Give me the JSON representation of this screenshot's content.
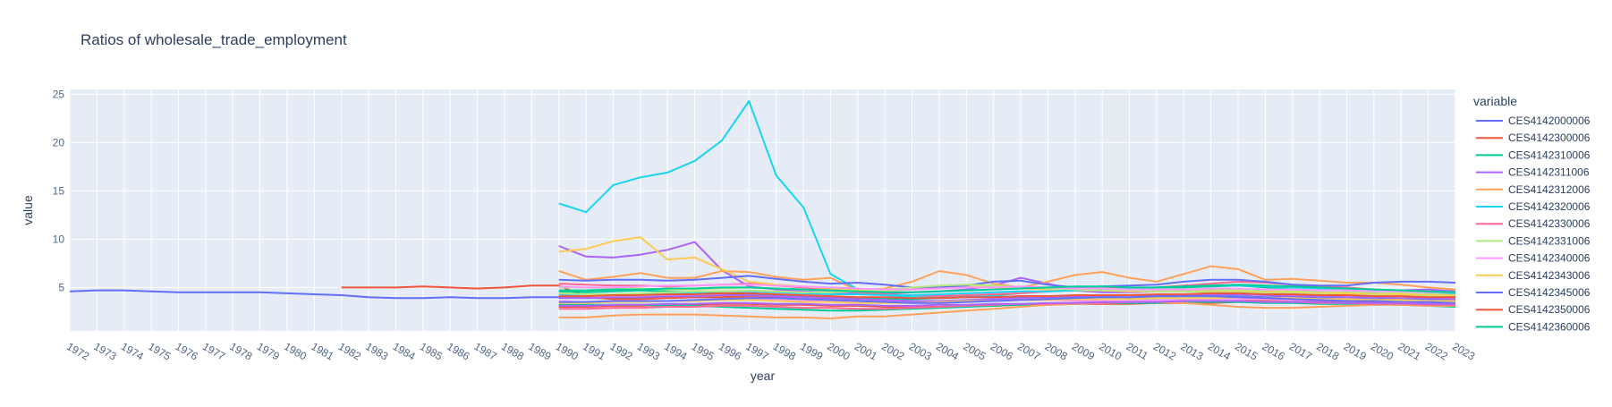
{
  "chart_data": {
    "type": "line",
    "title": "Ratios of wholesale_trade_employment",
    "xlabel": "year",
    "ylabel": "value",
    "xlim": [
      1972,
      2023
    ],
    "ylim": [
      0.5,
      25.5
    ],
    "y_ticks": [
      5,
      10,
      15,
      20,
      25
    ],
    "x_ticks": [
      1972,
      1973,
      1974,
      1975,
      1976,
      1977,
      1978,
      1979,
      1980,
      1981,
      1982,
      1983,
      1984,
      1985,
      1986,
      1987,
      1988,
      1989,
      1990,
      1991,
      1992,
      1993,
      1994,
      1995,
      1996,
      1997,
      1998,
      1999,
      2000,
      2001,
      2002,
      2003,
      2004,
      2005,
      2006,
      2007,
      2008,
      2009,
      2010,
      2011,
      2012,
      2013,
      2014,
      2015,
      2016,
      2017,
      2018,
      2019,
      2020,
      2021,
      2022,
      2023
    ],
    "grid": true,
    "legend": {
      "title": "variable",
      "placement": "right"
    },
    "series": [
      {
        "name": "CES4142000006",
        "color": "#636efa",
        "start": 1972,
        "values": [
          4.6,
          4.7,
          4.7,
          4.6,
          4.5,
          4.5,
          4.5,
          4.5,
          4.4,
          4.3,
          4.2,
          4.0,
          3.9,
          3.9,
          4.0,
          3.9,
          3.9,
          4.0,
          4.0,
          3.9,
          3.9,
          3.9,
          4.0,
          4.0,
          4.0,
          4.1,
          4.1,
          4.1,
          4.0,
          3.9,
          3.8,
          3.9,
          3.9,
          4.0,
          4.0,
          4.1,
          4.1,
          4.0,
          3.9,
          3.9,
          4.0,
          4.1,
          4.1,
          4.1,
          4.0,
          4.0,
          3.9,
          3.9,
          3.8,
          3.8,
          3.8,
          3.7
        ]
      },
      {
        "name": "CES4142300006",
        "color": "#ef553b",
        "start": 1982,
        "values": [
          5.0,
          5.0,
          5.0,
          5.1,
          5.0,
          4.9,
          5.0,
          5.2,
          5.2,
          4.0,
          3.8,
          3.8,
          3.9,
          4.0,
          4.0,
          4.1,
          4.0,
          4.0,
          3.9,
          3.8,
          3.7,
          3.6,
          3.5,
          3.6,
          3.6,
          3.7,
          3.7,
          3.8,
          3.6,
          3.6,
          3.7,
          3.8,
          3.8,
          3.7,
          3.7,
          3.7,
          3.6,
          3.6,
          3.5,
          3.5,
          3.5,
          3.4
        ]
      },
      {
        "name": "CES4142310006",
        "color": "#00cc96",
        "start": 1990,
        "values": [
          4.6,
          4.5,
          4.6,
          4.7,
          4.6,
          4.5,
          4.4,
          4.3,
          4.2,
          4.0,
          3.9,
          3.9,
          3.8,
          3.8,
          3.9,
          4.0,
          4.2,
          4.4,
          4.6,
          4.7,
          4.8,
          4.9,
          5.0,
          5.0,
          5.1,
          5.2,
          5.0,
          4.8,
          4.6,
          4.5,
          4.4,
          4.3,
          4.2,
          4.1
        ]
      },
      {
        "name": "CES4142311006",
        "color": "#ab63fa",
        "start": 1990,
        "values": [
          9.3,
          8.2,
          8.1,
          8.4,
          8.9,
          9.7,
          6.8,
          5.1,
          4.8,
          4.6,
          4.5,
          4.4,
          4.4,
          4.5,
          4.6,
          4.8,
          5.2,
          6.0,
          5.4,
          4.7,
          4.5,
          4.5,
          4.6,
          4.6,
          4.6,
          4.7,
          4.6,
          4.5,
          4.5,
          4.5,
          4.6,
          4.7,
          4.8,
          4.6
        ]
      },
      {
        "name": "CES4142312006",
        "color": "#ffa15a",
        "start": 1990,
        "values": [
          6.7,
          5.8,
          6.1,
          6.5,
          6.0,
          6.0,
          6.7,
          6.6,
          6.1,
          5.8,
          6.0,
          4.7,
          4.9,
          5.6,
          6.7,
          6.3,
          5.4,
          5.0,
          5.6,
          6.3,
          6.6,
          6.0,
          5.6,
          6.4,
          7.2,
          6.9,
          5.8,
          5.9,
          5.7,
          5.5,
          5.5,
          5.3,
          5.0,
          4.8
        ]
      },
      {
        "name": "CES4142320006",
        "color": "#19d3f3",
        "start": 1990,
        "values": [
          13.7,
          12.8,
          15.6,
          16.4,
          16.9,
          18.1,
          20.2,
          24.3,
          16.6,
          13.3,
          6.4,
          4.8,
          4.2,
          4.0,
          4.0,
          4.1,
          4.1,
          4.0,
          3.9,
          3.9,
          3.9,
          3.8,
          3.8,
          3.9,
          3.9,
          3.9,
          3.8,
          3.8,
          3.7,
          3.7,
          3.6,
          3.6,
          3.6,
          3.5
        ]
      },
      {
        "name": "CES4142330006",
        "color": "#ff6692",
        "start": 1990,
        "values": [
          5.4,
          5.3,
          5.2,
          5.2,
          5.1,
          5.2,
          5.3,
          5.4,
          5.2,
          5.0,
          4.8,
          4.5,
          4.3,
          4.2,
          4.1,
          4.2,
          4.3,
          4.4,
          4.6,
          4.8,
          4.9,
          4.9,
          5.0,
          5.2,
          5.4,
          5.6,
          5.5,
          5.3,
          5.1,
          5.0,
          4.8,
          4.6,
          4.5,
          4.4
        ]
      },
      {
        "name": "CES4142331006",
        "color": "#b6e880",
        "start": 1990,
        "values": [
          5.0,
          5.0,
          4.9,
          4.9,
          4.8,
          4.8,
          4.9,
          5.0,
          4.9,
          4.8,
          4.7,
          4.6,
          4.6,
          4.8,
          5.1,
          5.3,
          5.2,
          5.0,
          4.9,
          4.8,
          4.8,
          4.7,
          4.7,
          4.8,
          4.8,
          4.7,
          4.7,
          4.6,
          4.6,
          4.5,
          4.5,
          4.4,
          4.3,
          4.3
        ]
      },
      {
        "name": "CES4142340006",
        "color": "#ff97ff",
        "start": 1990,
        "values": [
          3.6,
          3.5,
          3.5,
          3.6,
          3.6,
          3.7,
          3.7,
          3.8,
          3.7,
          3.6,
          3.6,
          3.5,
          3.5,
          3.5,
          3.6,
          3.7,
          3.7,
          3.8,
          3.7,
          3.6,
          3.6,
          3.6,
          3.7,
          3.7,
          3.7,
          3.8,
          3.8,
          3.7,
          3.7,
          3.6,
          3.6,
          3.5,
          3.5,
          3.4
        ]
      },
      {
        "name": "CES4142343006",
        "color": "#fecb52",
        "start": 1990,
        "values": [
          8.7,
          9.0,
          9.8,
          10.2,
          7.9,
          8.1,
          6.9,
          5.6,
          5.3,
          5.1,
          4.9,
          4.8,
          4.8,
          4.9,
          5.0,
          5.1,
          5.0,
          4.9,
          4.8,
          4.7,
          4.7,
          4.6,
          4.6,
          4.6,
          4.6,
          4.6,
          4.5,
          4.5,
          4.4,
          4.4,
          4.3,
          4.3,
          4.2,
          4.2
        ]
      },
      {
        "name": "CES4142345006",
        "color": "#636efa",
        "start": 1990,
        "values": [
          5.8,
          5.7,
          5.8,
          5.8,
          5.7,
          5.8,
          6.0,
          6.2,
          5.9,
          5.6,
          5.4,
          5.5,
          5.3,
          5.0,
          5.0,
          5.2,
          5.6,
          5.7,
          5.3,
          5.0,
          5.1,
          5.2,
          5.3,
          5.6,
          5.8,
          5.8,
          5.6,
          5.3,
          5.2,
          5.2,
          5.5,
          5.6,
          5.6,
          5.5
        ]
      },
      {
        "name": "CES4142350006",
        "color": "#ef553b",
        "start": 1990,
        "values": [
          3.0,
          3.0,
          3.1,
          3.1,
          3.2,
          3.2,
          3.3,
          3.3,
          3.2,
          3.2,
          3.1,
          3.1,
          3.0,
          3.0,
          3.0,
          3.1,
          3.1,
          3.2,
          3.2,
          3.3,
          3.3,
          3.3,
          3.4,
          3.4,
          3.4,
          3.5,
          3.5,
          3.5,
          3.4,
          3.4,
          3.4,
          3.3,
          3.3,
          3.3
        ]
      },
      {
        "name": "CES4142360006",
        "color": "#00cc96",
        "start": 1990,
        "values": [
          3.2,
          3.2,
          3.2,
          3.2,
          3.1,
          3.1,
          3.0,
          2.9,
          2.8,
          2.7,
          2.6,
          2.6,
          2.7,
          2.8,
          2.9,
          3.0,
          3.1,
          3.2,
          3.3,
          3.3,
          3.4,
          3.4,
          3.4,
          3.5,
          3.5,
          3.5,
          3.4,
          3.4,
          3.3,
          3.3,
          3.2,
          3.2,
          3.1,
          3.0
        ]
      },
      {
        "name": "",
        "color": "#ab63fa",
        "start": 1990,
        "values": [
          3.9,
          3.9,
          4.0,
          4.0,
          4.1,
          4.1,
          4.2,
          4.2,
          4.1,
          4.0,
          3.9,
          3.8,
          3.7,
          3.6,
          3.6,
          3.7,
          3.8,
          3.9,
          4.0,
          4.1,
          4.1,
          4.2,
          4.2,
          4.3,
          4.3,
          4.3,
          4.2,
          4.1,
          4.1,
          4.0,
          4.0,
          3.9,
          3.9,
          3.8
        ]
      },
      {
        "name": "",
        "color": "#ffa15a",
        "start": 1990,
        "values": [
          1.9,
          1.9,
          2.1,
          2.2,
          2.2,
          2.2,
          2.1,
          2.0,
          1.9,
          1.9,
          1.8,
          2.0,
          2.0,
          2.2,
          2.4,
          2.6,
          2.8,
          3.0,
          3.2,
          3.3,
          3.4,
          3.5,
          3.5,
          3.4,
          3.2,
          3.0,
          2.9,
          2.9,
          3.0,
          3.1,
          3.2,
          3.2,
          3.1,
          3.1
        ]
      },
      {
        "name": "",
        "color": "#19d3f3",
        "start": 1990,
        "values": [
          4.3,
          4.2,
          4.2,
          4.3,
          4.4,
          4.5,
          4.6,
          4.6,
          4.5,
          4.4,
          4.3,
          4.3,
          4.2,
          4.2,
          4.3,
          4.4,
          4.5,
          4.6,
          4.6,
          4.7,
          4.8,
          4.9,
          5.0,
          5.1,
          5.2,
          5.2,
          5.1,
          5.0,
          4.9,
          4.8,
          4.7,
          4.6,
          4.5,
          4.4
        ]
      },
      {
        "name": "",
        "color": "#ff6692",
        "start": 1990,
        "values": [
          2.8,
          2.8,
          2.9,
          2.9,
          3.0,
          3.0,
          3.1,
          3.1,
          3.0,
          2.9,
          2.9,
          2.8,
          2.8,
          2.9,
          3.0,
          3.1,
          3.2,
          3.3,
          3.3,
          3.4,
          3.4,
          3.5,
          3.5,
          3.6,
          3.6,
          3.6,
          3.5,
          3.5,
          3.4,
          3.4,
          3.3,
          3.3,
          3.2,
          3.2
        ]
      },
      {
        "name": "",
        "color": "#b6e880",
        "start": 1990,
        "values": [
          4.4,
          4.3,
          4.3,
          4.4,
          4.5,
          4.6,
          4.6,
          4.7,
          4.6,
          4.5,
          4.5,
          4.6,
          4.8,
          5.0,
          5.2,
          5.3,
          5.2,
          5.0,
          4.9,
          4.8,
          4.7,
          4.7,
          4.6,
          4.6,
          4.5,
          4.5,
          4.4,
          4.4,
          4.3,
          4.2,
          4.2,
          4.1,
          4.1,
          4.0
        ]
      },
      {
        "name": "",
        "color": "#ff97ff",
        "start": 1990,
        "values": [
          5.1,
          5.0,
          5.0,
          5.1,
          5.2,
          5.2,
          5.3,
          5.3,
          5.2,
          5.1,
          5.0,
          4.9,
          4.8,
          4.8,
          4.9,
          5.0,
          5.0,
          5.1,
          5.0,
          4.9,
          4.9,
          4.8,
          4.8,
          4.8,
          4.9,
          4.9,
          4.8,
          4.8,
          4.7,
          4.7,
          4.6,
          4.6,
          4.5,
          4.5
        ]
      },
      {
        "name": "",
        "color": "#fecb52",
        "start": 1990,
        "values": [
          3.4,
          3.4,
          3.5,
          3.5,
          3.6,
          3.6,
          3.7,
          3.7,
          3.6,
          3.5,
          3.5,
          3.4,
          3.4,
          3.4,
          3.5,
          3.6,
          3.6,
          3.7,
          3.7,
          3.8,
          3.8,
          3.8,
          3.9,
          3.9,
          3.9,
          4.0,
          3.9,
          3.9,
          3.8,
          3.8,
          3.7,
          3.7,
          3.6,
          3.6
        ]
      },
      {
        "name": "",
        "color": "#636efa",
        "start": 1990,
        "values": [
          3.5,
          3.5,
          3.6,
          3.6,
          3.6,
          3.7,
          3.8,
          3.9,
          3.9,
          3.8,
          3.7,
          3.6,
          3.5,
          3.4,
          3.4,
          3.5,
          3.6,
          3.7,
          3.8,
          3.9,
          4.0,
          4.0,
          4.1,
          4.1,
          4.1,
          4.0,
          3.9,
          3.8,
          3.7,
          3.6,
          3.6,
          3.5,
          3.5,
          3.4
        ]
      },
      {
        "name": "",
        "color": "#ef553b",
        "start": 1990,
        "values": [
          4.1,
          4.1,
          4.2,
          4.2,
          4.3,
          4.3,
          4.4,
          4.4,
          4.3,
          4.2,
          4.1,
          4.0,
          4.0,
          3.9,
          3.9,
          4.0,
          4.0,
          4.1,
          4.1,
          4.2,
          4.2,
          4.2,
          4.3,
          4.3,
          4.4,
          4.4,
          4.3,
          4.3,
          4.2,
          4.2,
          4.1,
          4.1,
          4.0,
          4.0
        ]
      },
      {
        "name": "",
        "color": "#00cc96",
        "start": 1990,
        "values": [
          4.7,
          4.7,
          4.8,
          4.8,
          4.9,
          4.9,
          5.0,
          5.0,
          4.9,
          4.8,
          4.7,
          4.6,
          4.5,
          4.5,
          4.6,
          4.7,
          4.8,
          4.9,
          5.0,
          5.1,
          5.1,
          5.0,
          5.0,
          5.1,
          5.2,
          5.3,
          5.2,
          5.1,
          5.0,
          4.9,
          4.8,
          4.7,
          4.6,
          4.5
        ]
      },
      {
        "name": "",
        "color": "#ab63fa",
        "start": 1990,
        "values": [
          3.1,
          3.1,
          3.2,
          3.2,
          3.3,
          3.3,
          3.4,
          3.4,
          3.3,
          3.3,
          3.2,
          3.2,
          3.1,
          3.1,
          3.2,
          3.2,
          3.3,
          3.3,
          3.4,
          3.4,
          3.5,
          3.5,
          3.5,
          3.6,
          3.6,
          3.6,
          3.5,
          3.5,
          3.5,
          3.4,
          3.4,
          3.4,
          3.3,
          3.3
        ]
      }
    ]
  }
}
